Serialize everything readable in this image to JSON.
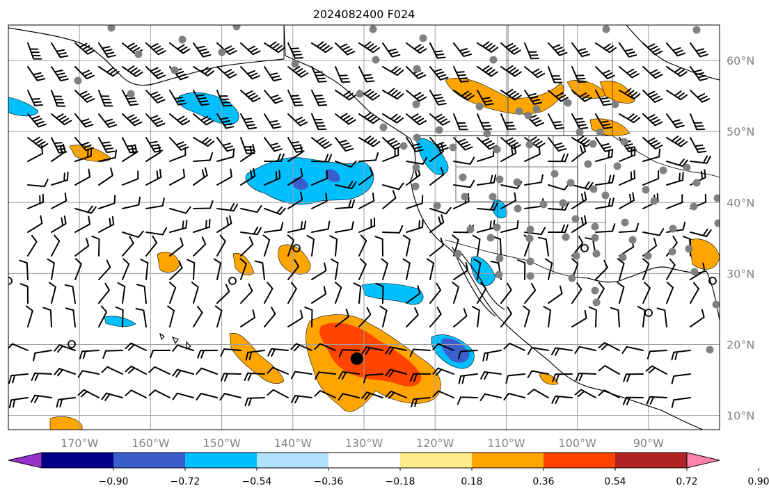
{
  "title": "2024082400 F024",
  "map": {
    "lon_range": [
      -180,
      -80
    ],
    "lat_range": [
      8,
      65
    ],
    "lon_ticks": [
      {
        "value": -170,
        "label": "170°W"
      },
      {
        "value": -160,
        "label": "160°W"
      },
      {
        "value": -150,
        "label": "150°W"
      },
      {
        "value": -140,
        "label": "140°W"
      },
      {
        "value": -130,
        "label": "130°W"
      },
      {
        "value": -120,
        "label": "120°W"
      },
      {
        "value": -110,
        "label": "110°W"
      },
      {
        "value": -100,
        "label": "100°W"
      },
      {
        "value": -90,
        "label": "90°W"
      }
    ],
    "lat_ticks": [
      {
        "value": 10,
        "label": "10°N"
      },
      {
        "value": 20,
        "label": "20°N"
      },
      {
        "value": 30,
        "label": "30°N"
      },
      {
        "value": 40,
        "label": "40°N"
      },
      {
        "value": 50,
        "label": "50°N"
      },
      {
        "value": 60,
        "label": "60°N"
      }
    ],
    "grid": true,
    "storm_center": {
      "lon": -131,
      "lat": 18
    }
  },
  "colorbar": {
    "colors": [
      "#9932cc",
      "#00008b",
      "#3a5fcd",
      "#00bfff",
      "#b0e2ff",
      "#ffffff",
      "#ffec8b",
      "#ffa500",
      "#ff4500",
      "#b22222",
      "#ff82ab"
    ],
    "tick_labels": [
      "−0.90",
      "−0.72",
      "−0.54",
      "−0.36",
      "−0.18",
      "0.18",
      "0.36",
      "0.54",
      "0.72",
      "0.90"
    ],
    "extend": "both"
  },
  "colors": {
    "coast": "#000000",
    "grid": "#a0a0a0",
    "station": "#808080"
  }
}
